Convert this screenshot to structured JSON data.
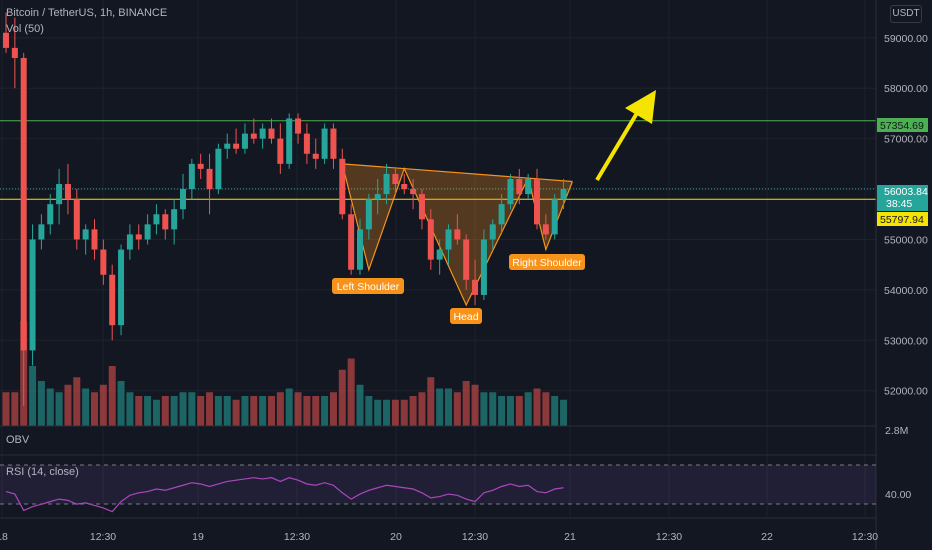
{
  "header": {
    "symbol_title": "Bitcoin / TetherUS, 1h, BINANCE",
    "volume_label": "Vol (50)",
    "currency": "USDT"
  },
  "price_axis": {
    "ticks": [
      "59000.00",
      "58000.00",
      "57000.00",
      "55000.00",
      "54000.00",
      "53000.00",
      "52000.00"
    ],
    "current_price": "56003.84",
    "countdown": "38:45",
    "resistance_price": "57354.69",
    "neckline_price": "55797.94",
    "volume_scale": "2.8M"
  },
  "obv_label": "OBV",
  "rsi": {
    "label": "RSI (14, close)",
    "level_label": "40.00"
  },
  "time_axis": {
    "ticks": [
      "18",
      "12:30",
      "19",
      "12:30",
      "20",
      "12:30",
      "21",
      "12:30",
      "22",
      "12:30"
    ]
  },
  "annotations": {
    "left_shoulder": "Left Shoulder",
    "head": "Head",
    "right_shoulder": "Right Shoulder"
  },
  "colors": {
    "background": "#131722",
    "bull": "#26a69a",
    "bear": "#ef5350",
    "resistance_line": "#4caf50",
    "neckline": "#f5e400",
    "pattern": "#f7931a",
    "arrow": "#f5e400",
    "rsi_line": "#ab47bc"
  },
  "chart_data": {
    "type": "candlestick",
    "ylim": [
      51300,
      59750
    ],
    "resistance": 57354.69,
    "neckline": 55797.94,
    "current_price": 56003.84,
    "candles": [
      [
        59100,
        59500,
        58700,
        58800
      ],
      [
        58800,
        59400,
        58000,
        58600
      ],
      [
        58600,
        58700,
        51700,
        52800
      ],
      [
        52800,
        55300,
        52500,
        55000
      ],
      [
        55000,
        55500,
        54800,
        55300
      ],
      [
        55300,
        55900,
        55100,
        55700
      ],
      [
        55700,
        56400,
        55300,
        56100
      ],
      [
        56100,
        56500,
        55500,
        55800
      ],
      [
        55800,
        56000,
        54800,
        55000
      ],
      [
        55000,
        55300,
        54700,
        55200
      ],
      [
        55200,
        55400,
        54600,
        54800
      ],
      [
        54800,
        55000,
        54100,
        54300
      ],
      [
        54300,
        54500,
        53000,
        53300
      ],
      [
        53300,
        54900,
        53100,
        54800
      ],
      [
        54800,
        55300,
        54600,
        55100
      ],
      [
        55100,
        55300,
        54800,
        55000
      ],
      [
        55000,
        55500,
        54900,
        55300
      ],
      [
        55300,
        55700,
        55100,
        55500
      ],
      [
        55500,
        55600,
        55000,
        55200
      ],
      [
        55200,
        55800,
        54900,
        55600
      ],
      [
        55600,
        56300,
        55400,
        56000
      ],
      [
        56000,
        56600,
        55800,
        56500
      ],
      [
        56500,
        56700,
        56200,
        56400
      ],
      [
        56400,
        56700,
        55500,
        56000
      ],
      [
        56000,
        56900,
        55900,
        56800
      ],
      [
        56800,
        57100,
        56600,
        56900
      ],
      [
        56900,
        57200,
        56700,
        56800
      ],
      [
        56800,
        57300,
        56700,
        57100
      ],
      [
        57100,
        57400,
        56900,
        57000
      ],
      [
        57000,
        57300,
        56800,
        57200
      ],
      [
        57200,
        57400,
        56900,
        57000
      ],
      [
        57000,
        57300,
        56300,
        56500
      ],
      [
        56500,
        57500,
        56400,
        57400
      ],
      [
        57400,
        57500,
        56900,
        57100
      ],
      [
        57100,
        57300,
        56500,
        56700
      ],
      [
        56700,
        57000,
        56400,
        56600
      ],
      [
        56600,
        57300,
        56500,
        57200
      ],
      [
        57200,
        57300,
        56400,
        56600
      ],
      [
        56600,
        56800,
        55400,
        55500
      ],
      [
        55500,
        55700,
        54300,
        54400
      ],
      [
        54400,
        55400,
        54300,
        55200
      ],
      [
        55200,
        55900,
        55000,
        55800
      ],
      [
        55800,
        56200,
        55500,
        55900
      ],
      [
        55900,
        56500,
        55700,
        56300
      ],
      [
        56300,
        56400,
        55900,
        56100
      ],
      [
        56100,
        56300,
        55900,
        56000
      ],
      [
        56000,
        56200,
        55600,
        55900
      ],
      [
        55900,
        56000,
        55200,
        55400
      ],
      [
        55400,
        55600,
        54400,
        54600
      ],
      [
        54600,
        55000,
        54300,
        54800
      ],
      [
        54800,
        55300,
        54500,
        55200
      ],
      [
        55200,
        55500,
        54900,
        55000
      ],
      [
        55000,
        55100,
        54000,
        54200
      ],
      [
        54200,
        54600,
        53700,
        53900
      ],
      [
        53900,
        55200,
        53800,
        55000
      ],
      [
        55000,
        55400,
        54800,
        55300
      ],
      [
        55300,
        55900,
        55100,
        55700
      ],
      [
        55700,
        56300,
        55600,
        56200
      ],
      [
        56200,
        56400,
        55700,
        55900
      ],
      [
        55900,
        56300,
        55800,
        56200
      ],
      [
        56200,
        56400,
        55200,
        55300
      ],
      [
        55300,
        55500,
        55000,
        55100
      ],
      [
        55100,
        55900,
        55000,
        55800
      ],
      [
        55800,
        56200,
        55600,
        56000
      ]
    ],
    "volume": [
      0.9,
      0.9,
      2.8,
      1.6,
      1.2,
      1.0,
      0.9,
      1.1,
      1.3,
      1.0,
      0.9,
      1.1,
      1.6,
      1.2,
      0.9,
      0.8,
      0.8,
      0.7,
      0.8,
      0.8,
      0.9,
      0.9,
      0.8,
      0.9,
      0.8,
      0.8,
      0.7,
      0.8,
      0.8,
      0.8,
      0.8,
      0.9,
      1.0,
      0.9,
      0.8,
      0.8,
      0.8,
      0.9,
      1.5,
      1.8,
      1.1,
      0.8,
      0.7,
      0.7,
      0.7,
      0.7,
      0.8,
      0.9,
      1.3,
      1.0,
      1.0,
      0.9,
      1.2,
      1.1,
      0.9,
      0.9,
      0.8,
      0.8,
      0.8,
      0.9,
      1.0,
      0.9,
      0.8,
      0.7
    ],
    "rsi": [
      46,
      44,
      31,
      34,
      36,
      38,
      40,
      39,
      36,
      37,
      35,
      33,
      30,
      38,
      43,
      45,
      46,
      48,
      47,
      49,
      51,
      53,
      52,
      50,
      52,
      54,
      55,
      56,
      57,
      56,
      57,
      54,
      57,
      55,
      52,
      51,
      53,
      51,
      45,
      40,
      44,
      47,
      49,
      51,
      50,
      49,
      48,
      45,
      41,
      42,
      44,
      43,
      40,
      38,
      45,
      47,
      50,
      52,
      50,
      51,
      46,
      45,
      48,
      49
    ],
    "rsi_levels": [
      70,
      30
    ],
    "rsi_ylim": [
      25,
      75
    ],
    "pattern": {
      "left_shoulder": 54400,
      "head": 53700,
      "right_shoulder": 54800,
      "neckline_points": [
        56500,
        56150
      ]
    }
  }
}
